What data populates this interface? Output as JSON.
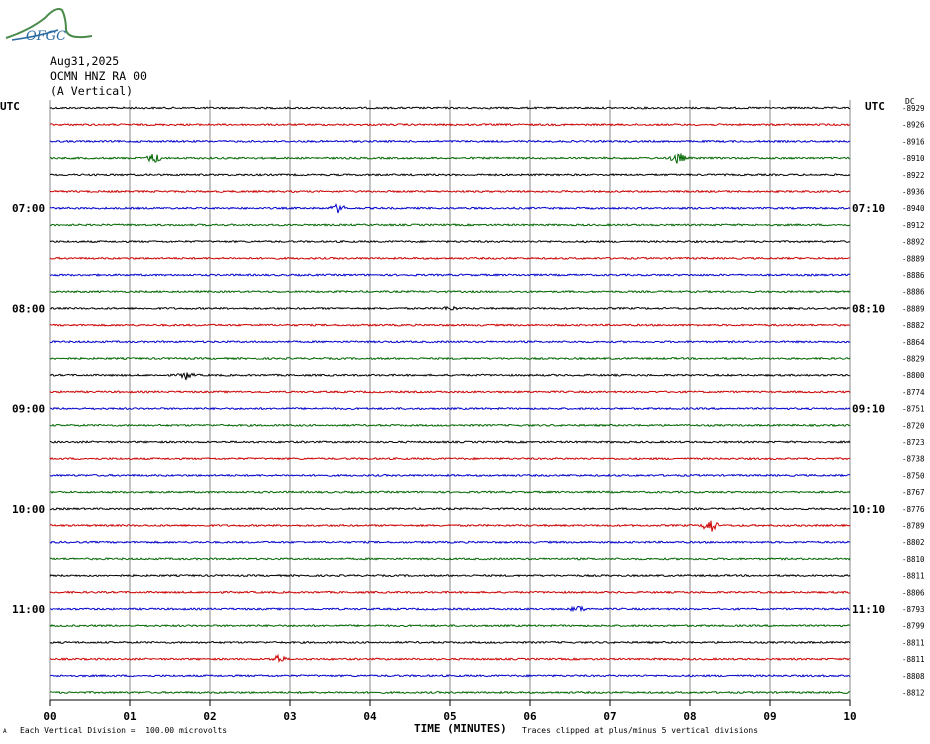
{
  "logo": {
    "text": "OFGC"
  },
  "header": {
    "date": "Aug31,2025",
    "station": "OCMN HNZ RA 00",
    "component": "(A Vertical)"
  },
  "axis": {
    "left_label": "UTC",
    "right_label": "UTC",
    "right_unit": "DC",
    "xlabel": "TIME (MINUTES)",
    "scale_note": "Each Vertical Division =  100.00 microvolts",
    "clip_note": "Traces clipped at plus/minus 5 vertical divisions",
    "corner_mark": "A"
  },
  "colors": {
    "trace_cycle": [
      "#000000",
      "#cc0000",
      "#0000cc",
      "#006600"
    ],
    "grid": "#000000"
  },
  "chart_data": {
    "type": "line",
    "title": "",
    "x": [
      "00",
      "01",
      "02",
      "03",
      "04",
      "05",
      "06",
      "07",
      "08",
      "09",
      "10"
    ],
    "xlim": [
      0,
      10
    ],
    "trace_count": 36,
    "minutes_per_trace": 10,
    "left_time_labels": [
      {
        "row": 6,
        "text": "07:00"
      },
      {
        "row": 12,
        "text": "08:00"
      },
      {
        "row": 18,
        "text": "09:00"
      },
      {
        "row": 24,
        "text": "10:00"
      },
      {
        "row": 30,
        "text": "11:00"
      }
    ],
    "right_time_labels": [
      {
        "row": 6,
        "text": "07:10"
      },
      {
        "row": 12,
        "text": "08:10"
      },
      {
        "row": 18,
        "text": "09:10"
      },
      {
        "row": 24,
        "text": "10:10"
      },
      {
        "row": 30,
        "text": "11:10"
      }
    ],
    "dc_offsets": [
      "-8929",
      "-8926",
      "-8916",
      "-8910",
      "-8922",
      "-8936",
      "-8940",
      "-8912",
      "-8892",
      "-8889",
      "-8886",
      "-8886",
      "-8889",
      "-8882",
      "-8864",
      "-8829",
      "-8800",
      "-8774",
      "-8751",
      "-8720",
      "-8723",
      "-8738",
      "-8750",
      "-8767",
      "-8776",
      "-8789",
      "-8802",
      "-8810",
      "-8811",
      "-8806",
      "-8793",
      "-8799",
      "-8811",
      "-8811",
      "-8808",
      "-8812"
    ],
    "events": [
      {
        "row": 3,
        "minute": 1.3,
        "amp": 5
      },
      {
        "row": 3,
        "minute": 7.85,
        "amp": 6
      },
      {
        "row": 6,
        "minute": 3.6,
        "amp": 4
      },
      {
        "row": 12,
        "minute": 5.0,
        "amp": 2
      },
      {
        "row": 16,
        "minute": 1.7,
        "amp": 4
      },
      {
        "row": 25,
        "minute": 8.25,
        "amp": 8
      },
      {
        "row": 30,
        "minute": 6.6,
        "amp": 3
      },
      {
        "row": 33,
        "minute": 2.85,
        "amp": 4
      }
    ]
  }
}
